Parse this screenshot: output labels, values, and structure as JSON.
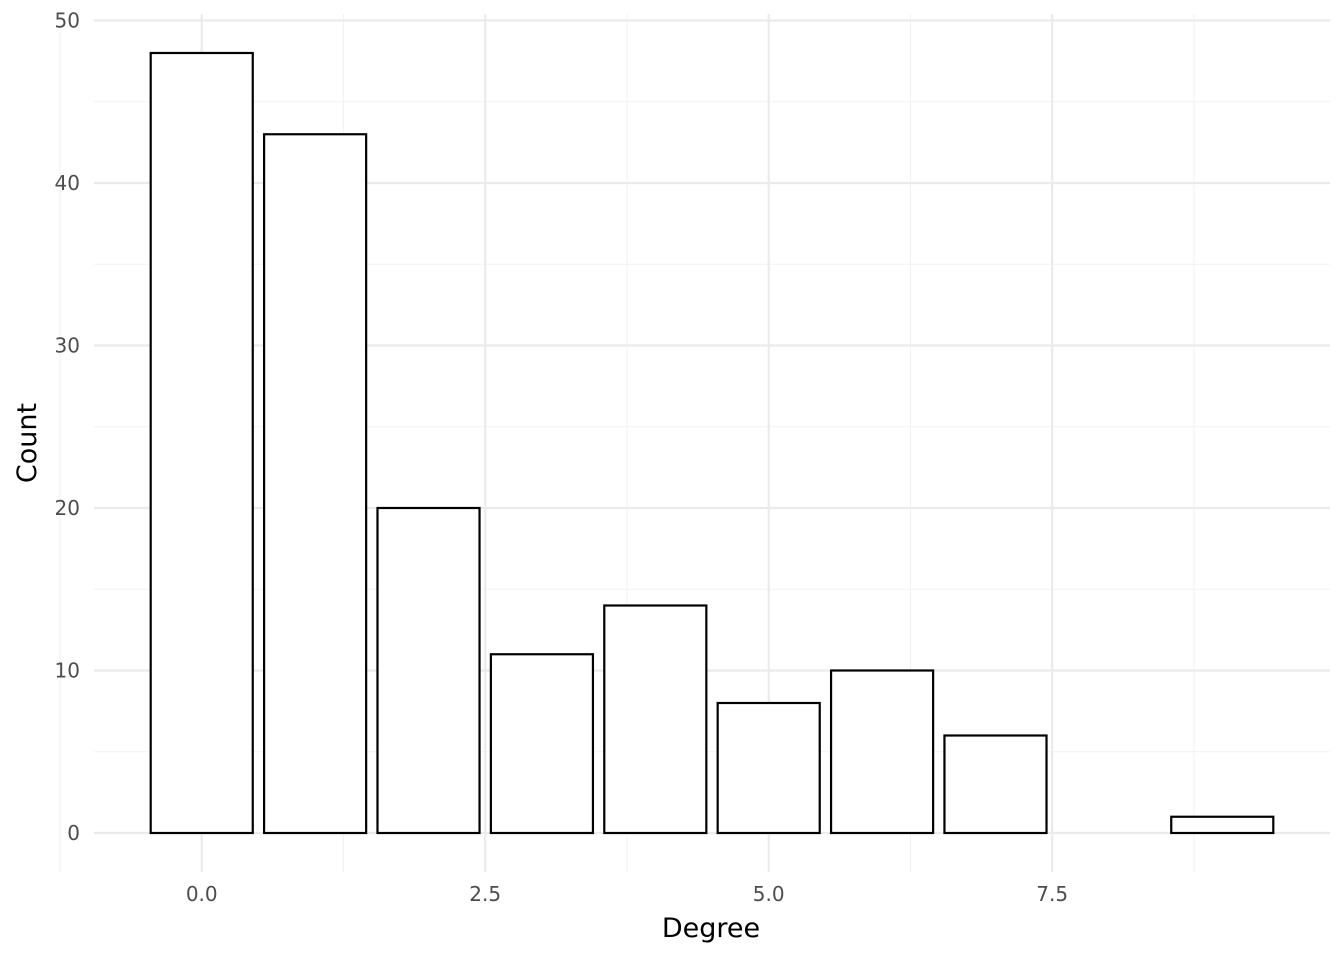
{
  "chart_data": {
    "type": "bar",
    "x": [
      0,
      1,
      2,
      3,
      4,
      5,
      6,
      7,
      9
    ],
    "values": [
      48,
      43,
      20,
      11,
      14,
      8,
      10,
      6,
      1
    ],
    "bar_fill": "#ffffff",
    "bar_outline": "#000000",
    "xlabel": "Degree",
    "ylabel": "Count",
    "xlim": [
      -0.95,
      9.95
    ],
    "ylim": [
      -2.4,
      50.4
    ],
    "x_ticks": [
      0,
      2.5,
      5,
      7.5
    ],
    "x_tick_labels": [
      "0.0",
      "2.5",
      "5.0",
      "7.5"
    ],
    "y_ticks": [
      0,
      10,
      20,
      30,
      40,
      50
    ],
    "y_tick_labels": [
      "0",
      "10",
      "20",
      "30",
      "40",
      "50"
    ],
    "grid": true,
    "legend": "none"
  }
}
